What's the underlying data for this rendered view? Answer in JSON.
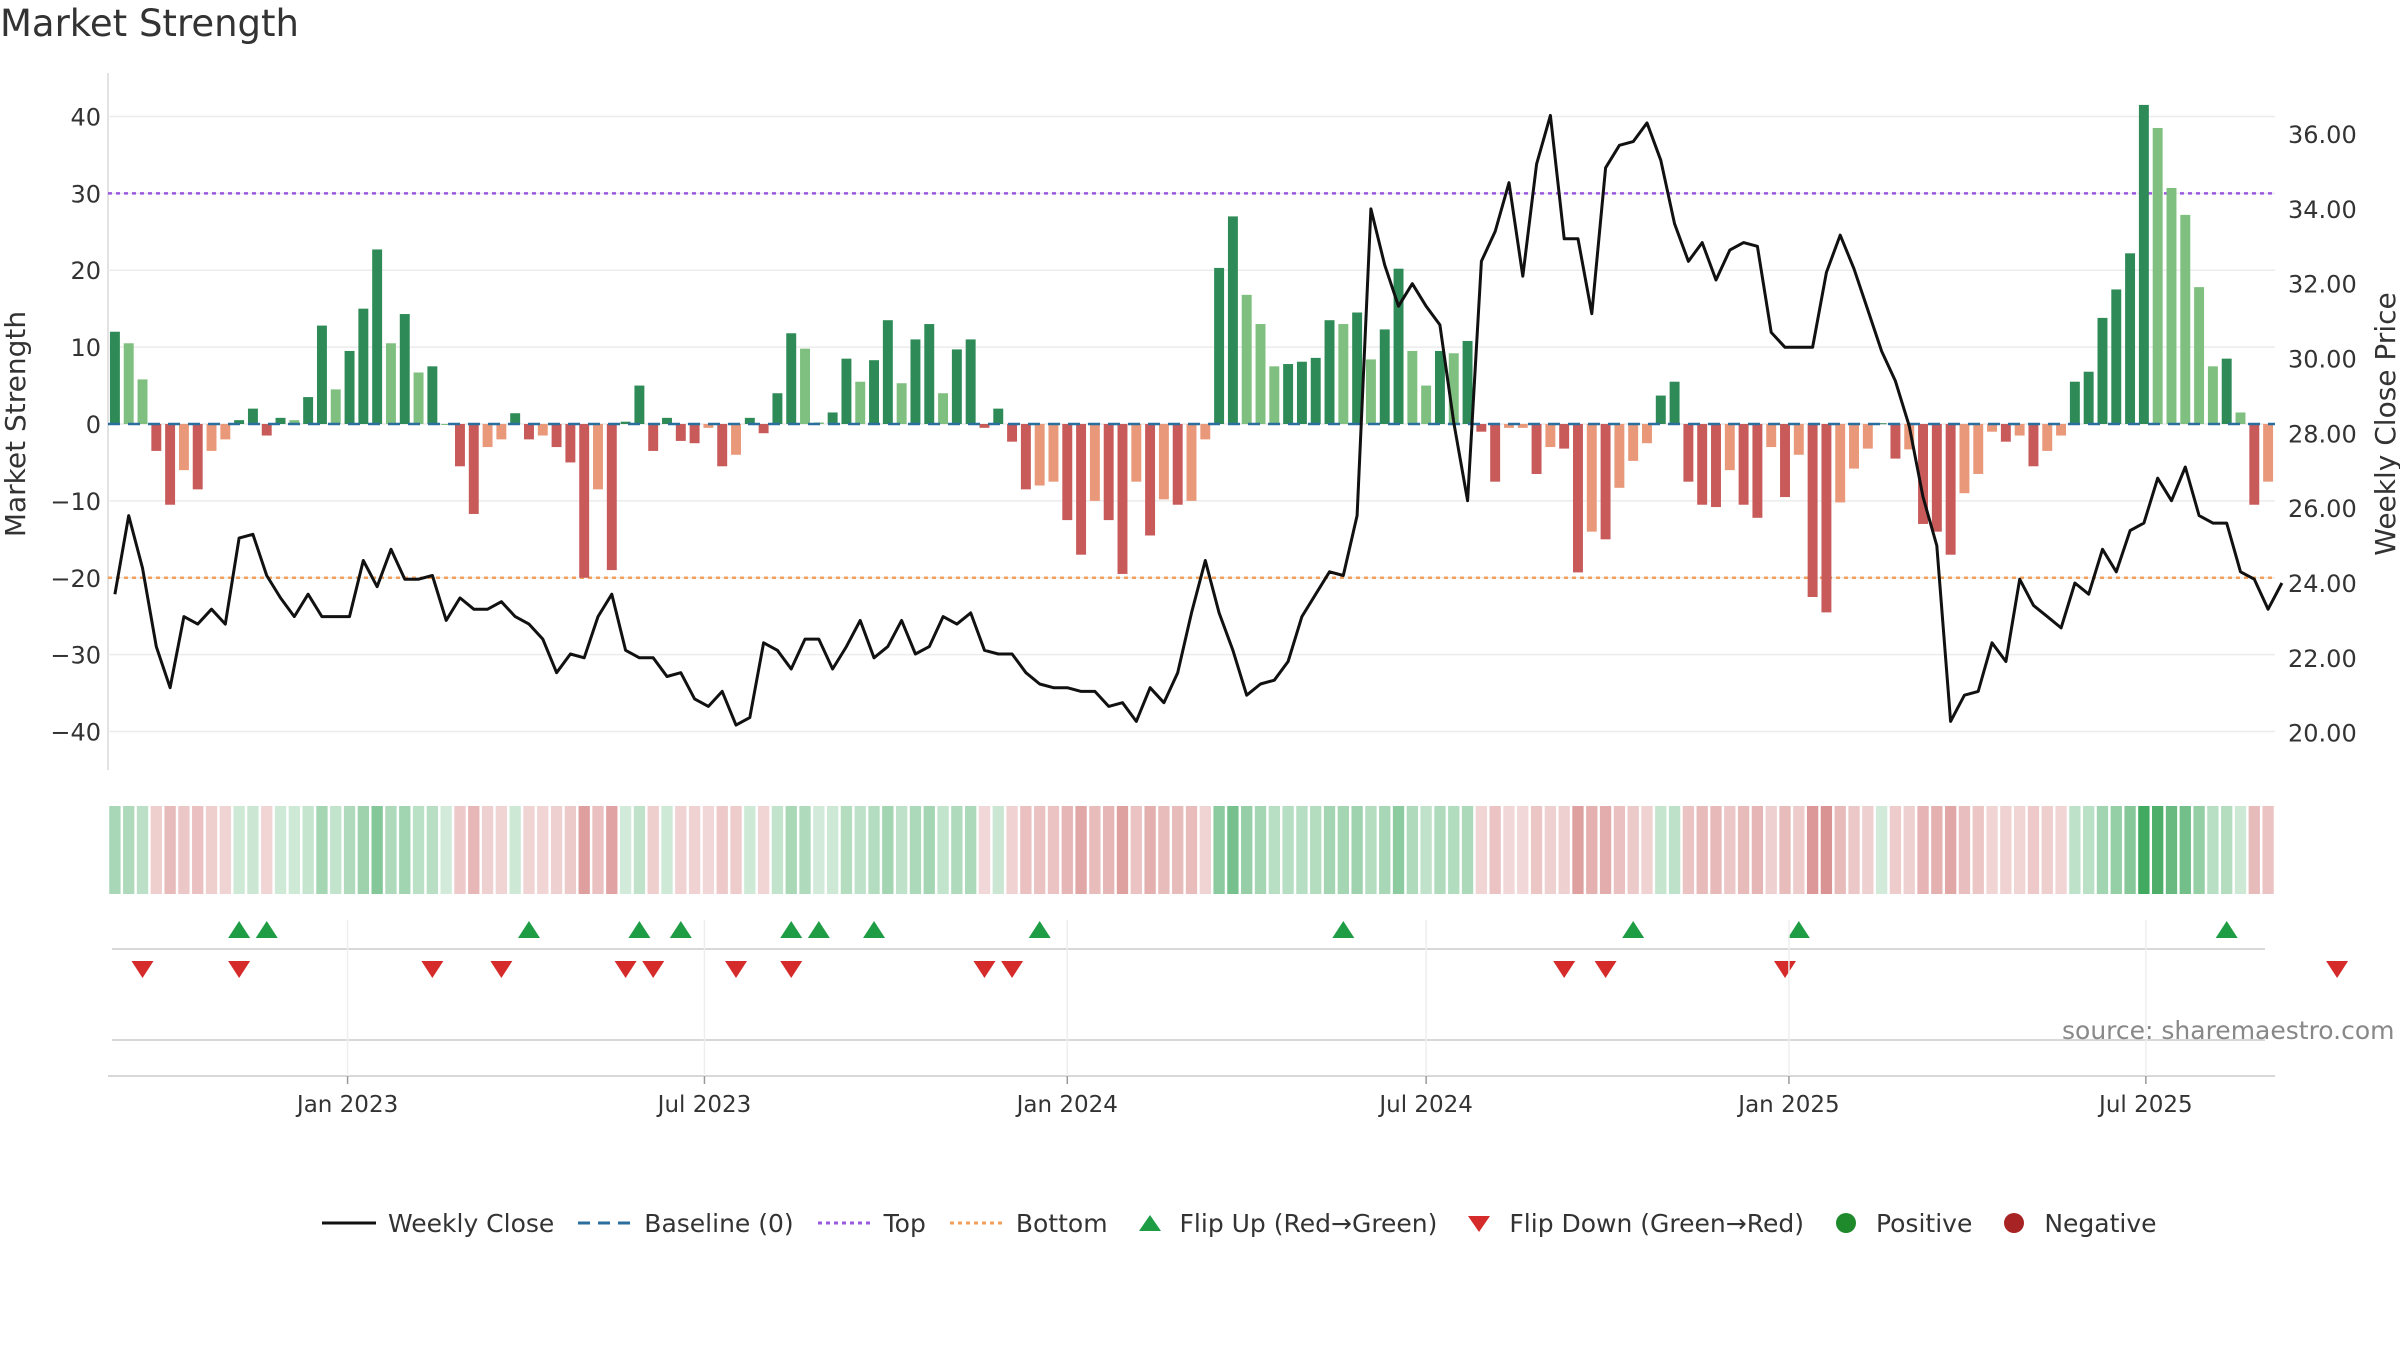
{
  "title": "Market Strength",
  "source": "source: sharemaestro.com",
  "legend": [
    {
      "label": "Weekly Close",
      "kind": "line",
      "color": "#111111",
      "dash": ""
    },
    {
      "label": "Baseline (0)",
      "kind": "line",
      "color": "#2b6f9e",
      "dash": "12,8"
    },
    {
      "label": "Top",
      "kind": "line",
      "color": "#9b59e0",
      "dash": "4,4"
    },
    {
      "label": "Bottom",
      "kind": "line",
      "color": "#f0a05a",
      "dash": "4,4"
    },
    {
      "label": "Flip Up (Red→Green)",
      "kind": "tri-up",
      "color": "#1f9d45"
    },
    {
      "label": "Flip Down (Green→Red)",
      "kind": "tri-down",
      "color": "#d62b2b"
    },
    {
      "label": "Positive",
      "kind": "dot",
      "color": "#1f8a2b"
    },
    {
      "label": "Negative",
      "kind": "dot",
      "color": "#a82424"
    }
  ],
  "chart_data": {
    "type": "bar",
    "x_start": "2022-09-05",
    "x_step_days": 7,
    "left_axis": {
      "label": "Market Strength",
      "ticks": [
        40,
        30,
        20,
        10,
        0,
        -10,
        -20,
        -30,
        -40
      ],
      "range": [
        -45,
        45
      ]
    },
    "right_axis": {
      "label": "Weekly Close Price",
      "ticks": [
        "36.00",
        "34.00",
        "32.00",
        "30.00",
        "28.00",
        "26.00",
        "24.00",
        "22.00",
        "20.00"
      ],
      "range": [
        19.0,
        37.5
      ]
    },
    "x_ticks": [
      {
        "label": "Jan 2023",
        "date": "2023-01-01"
      },
      {
        "label": "Jul 2023",
        "date": "2023-07-01"
      },
      {
        "label": "Jan 2024",
        "date": "2024-01-01"
      },
      {
        "label": "Jul 2024",
        "date": "2024-07-01"
      },
      {
        "label": "Jan 2025",
        "date": "2025-01-01"
      },
      {
        "label": "Jul 2025",
        "date": "2025-07-01"
      }
    ],
    "top_level": 30,
    "bottom_level": -20,
    "baseline": 0,
    "strength": [
      12,
      10.5,
      5.8,
      -3.5,
      -10.5,
      -6,
      -8.5,
      -3.5,
      -2,
      0.5,
      2,
      -1.5,
      0.8,
      0.5,
      3.5,
      12.8,
      4.5,
      9.5,
      15,
      22.7,
      10.5,
      14.3,
      6.7,
      7.5,
      0,
      -5.5,
      -11.7,
      -3,
      -2,
      1.4,
      -2,
      -1.5,
      -3,
      -5,
      -20,
      -8.5,
      -19,
      0.3,
      5,
      -3.5,
      0.8,
      -2.2,
      -2.5,
      -0.5,
      -5.5,
      -4,
      0.8,
      -1.2,
      4,
      11.8,
      9.8,
      0.2,
      1.5,
      8.5,
      5.5,
      8.3,
      13.5,
      5.3,
      11,
      13,
      4,
      9.7,
      11,
      -0.5,
      2,
      -2.3,
      -8.5,
      -8,
      -7.5,
      -12.5,
      -17,
      -10,
      -12.5,
      -19.5,
      -7.5,
      -14.5,
      -9.8,
      -10.5,
      -10,
      -2,
      20.3,
      27,
      16.8,
      13,
      7.5,
      7.8,
      8.1,
      8.6,
      13.5,
      13,
      14.5,
      8.4,
      12.3,
      20.2,
      9.5,
      5,
      9.5,
      9.2,
      10.8,
      -1,
      -7.5,
      -0.5,
      -0.5,
      -6.5,
      -3,
      -3.2,
      -19.3,
      -14,
      -15,
      -8.3,
      -4.8,
      -2.5,
      3.7,
      5.5,
      -7.5,
      -10.5,
      -10.8,
      -6,
      -10.5,
      -12.2,
      -3,
      -9.5,
      -4,
      -22.5,
      -24.5,
      -10.2,
      -5.8,
      -3.2,
      0.1,
      -4.5,
      -3.3,
      -13,
      -14,
      -17,
      -9,
      -6.5,
      -1,
      -2.3,
      -1.5,
      -5.5,
      -3.5,
      -1.5,
      5.5,
      6.8,
      13.8,
      17.5,
      22.2,
      41.5,
      38.5,
      30.7,
      27.2,
      17.8,
      7.5,
      8.5,
      1.5,
      -10.5,
      -7.5
    ],
    "weekly_close": [
      23.7,
      25.8,
      24.4,
      22.3,
      21.2,
      23.1,
      22.9,
      23.3,
      22.9,
      25.2,
      25.3,
      24.2,
      23.6,
      23.1,
      23.7,
      23.1,
      23.1,
      23.1,
      24.6,
      23.9,
      24.9,
      24.1,
      24.1,
      24.2,
      23.0,
      23.6,
      23.3,
      23.3,
      23.5,
      23.1,
      22.9,
      22.5,
      21.6,
      22.1,
      22.0,
      23.1,
      23.7,
      22.2,
      22.0,
      22.0,
      21.5,
      21.6,
      20.9,
      20.7,
      21.1,
      20.2,
      20.4,
      22.4,
      22.2,
      21.7,
      22.5,
      22.5,
      21.7,
      22.3,
      23.0,
      22.0,
      22.3,
      23.0,
      22.1,
      22.3,
      23.1,
      22.9,
      23.2,
      22.2,
      22.1,
      22.1,
      21.6,
      21.3,
      21.2,
      21.2,
      21.1,
      21.1,
      20.7,
      20.8,
      20.3,
      21.2,
      20.8,
      21.6,
      23.2,
      24.6,
      23.2,
      22.2,
      21.0,
      21.3,
      21.4,
      21.9,
      23.1,
      23.7,
      24.3,
      24.2,
      25.8,
      34.0,
      32.5,
      31.4,
      32.0,
      31.4,
      30.9,
      28.3,
      26.2,
      32.6,
      33.4,
      34.7,
      32.2,
      35.2,
      36.5,
      33.2,
      33.2,
      31.2,
      35.1,
      35.7,
      35.8,
      36.3,
      35.3,
      33.6,
      32.6,
      33.1,
      32.1,
      32.9,
      33.1,
      33.0,
      30.7,
      30.3,
      30.3,
      30.3,
      32.3,
      33.3,
      32.4,
      31.3,
      30.2,
      29.4,
      28.2,
      26.3,
      25.0,
      20.3,
      21.0,
      21.1,
      22.4,
      21.9,
      24.1,
      23.4,
      23.1,
      22.8,
      24.0,
      23.7,
      24.9,
      24.3,
      25.4,
      25.6,
      26.8,
      26.2,
      27.1,
      25.8,
      25.6,
      25.6,
      24.3,
      24.1,
      23.3,
      24.0
    ]
  },
  "flip_up_idx": [
    9,
    11,
    30,
    38,
    41,
    49,
    51,
    55,
    67,
    89,
    110,
    122,
    153
  ],
  "flip_down_idx": [
    2,
    9,
    23,
    28,
    37,
    39,
    45,
    49,
    63,
    65,
    105,
    108,
    121,
    161
  ],
  "colors": {
    "pos_strong": "#2e8b57",
    "pos_light": "#7fbf7f",
    "neg_strong": "#c85a5a",
    "neg_light": "#e9997a",
    "grid": "#ececec",
    "axis_text": "#333333"
  }
}
